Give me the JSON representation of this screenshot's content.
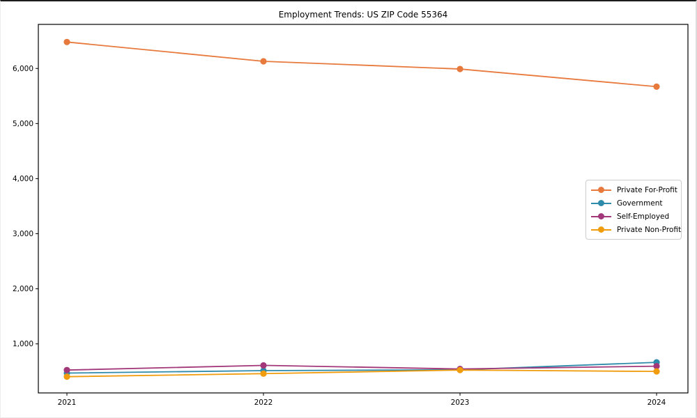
{
  "figure": {
    "title": "Employment Trends: US ZIP Code 55364"
  },
  "chart_data": {
    "type": "line",
    "title": "Employment Trends: US ZIP Code 55364",
    "xlabel": "",
    "ylabel": "",
    "x": [
      2021,
      2022,
      2023,
      2024
    ],
    "x_tick_labels": [
      "2021",
      "2022",
      "2023",
      "2024"
    ],
    "series": [
      {
        "name": "Private For-Profit",
        "color": "#e8793c",
        "values": [
          6480,
          6130,
          5990,
          5670
        ]
      },
      {
        "name": "Government",
        "color": "#2e8bab",
        "values": [
          470,
          515,
          530,
          665
        ]
      },
      {
        "name": "Self-Employed",
        "color": "#a23779",
        "values": [
          525,
          610,
          545,
          595
        ]
      },
      {
        "name": "Private Non-Profit",
        "color": "#f09c0d",
        "values": [
          405,
          460,
          525,
          500
        ]
      }
    ],
    "yticks": [
      1000,
      2000,
      3000,
      4000,
      5000,
      6000
    ],
    "ytick_labels": [
      "1,000",
      "2,000",
      "3,000",
      "4,000",
      "5,000",
      "6,000"
    ],
    "ylim": [
      110,
      6800
    ],
    "grid": false,
    "legend_position": "center-right",
    "marker": "circle",
    "axis_color": "#000000"
  }
}
